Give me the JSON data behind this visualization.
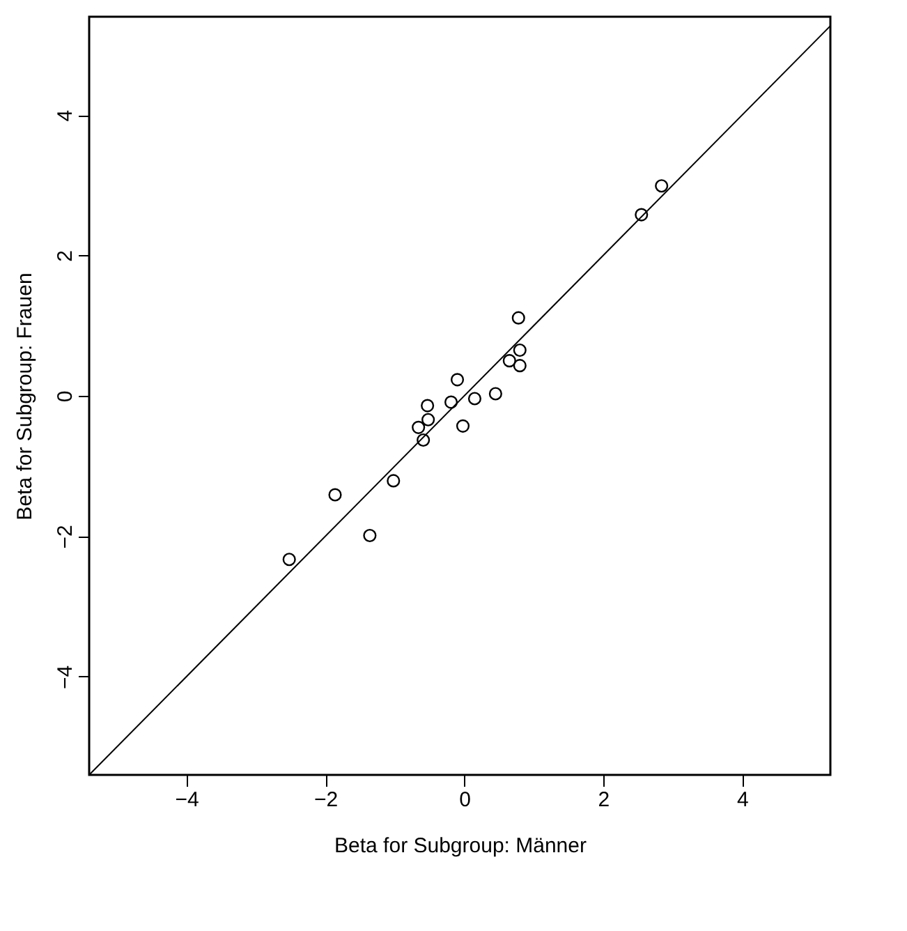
{
  "chart_data": {
    "type": "scatter",
    "xlabel": "Beta for Subgroup: Männer",
    "ylabel": "Beta for Subgroup: Frauen",
    "xlim": [
      -5.4,
      5.27
    ],
    "ylim": [
      -5.4,
      5.4
    ],
    "xticks": [
      -4,
      -2,
      0,
      2,
      4
    ],
    "yticks": [
      -4,
      -2,
      0,
      2,
      4
    ],
    "grid": false,
    "marker": "circle",
    "series": [
      {
        "color": "#000000",
        "x": [
          0.78,
          0.8,
          0.65,
          0.8,
          -0.1,
          0.15,
          0.45,
          -0.19,
          -0.53,
          -0.52,
          -0.66,
          -0.59,
          -0.02,
          -1.02,
          -1.86,
          -1.36,
          -2.52,
          2.84,
          2.55
        ],
        "values": [
          1.11,
          0.65,
          0.5,
          0.43,
          0.23,
          -0.04,
          0.03,
          -0.09,
          -0.14,
          -0.34,
          -0.45,
          -0.63,
          -0.43,
          -1.21,
          -1.41,
          -1.99,
          -2.33,
          2.99,
          2.58
        ]
      },
      {
        "type": "line",
        "color": "#000000",
        "line_style": "solid",
        "marker": "none",
        "x": [
          -5.4,
          5.27
        ],
        "values": [
          -5.4,
          5.27
        ]
      }
    ]
  }
}
